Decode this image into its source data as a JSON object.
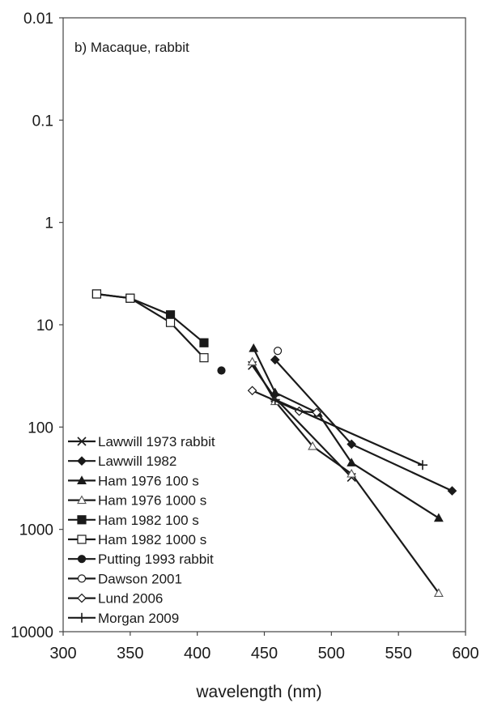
{
  "chart_data": {
    "type": "line",
    "annotation": "b)  Macaque, rabbit",
    "xlabel": "wavelength (nm)",
    "ylabel": "",
    "xlim": [
      300,
      600
    ],
    "ylim": [
      0.01,
      10000
    ],
    "y_scale": "log",
    "y_inverted": true,
    "grid": false,
    "legend_position": "bottom-left",
    "x_ticks": [
      300,
      350,
      400,
      450,
      500,
      550,
      600
    ],
    "x_tick_labels": [
      "300",
      "350",
      "400",
      "450",
      "500",
      "550",
      "600"
    ],
    "y_ticks": [
      0.01,
      0.1,
      1,
      10,
      100,
      1000,
      10000
    ],
    "y_tick_labels": [
      "0.01",
      "0.1",
      "1",
      "10",
      "100",
      "1000",
      "10000"
    ],
    "series": [
      {
        "name": "Lawwill 1973 rabbit",
        "marker": "x",
        "points": [
          [
            441,
            25
          ],
          [
            458,
            52
          ],
          [
            515,
            310
          ]
        ]
      },
      {
        "name": "Lawwill 1982",
        "marker": "diamond",
        "points": [
          [
            458,
            22
          ],
          [
            515,
            147
          ],
          [
            590,
            420
          ]
        ]
      },
      {
        "name": "Ham 1976 100 s",
        "marker": "triangle",
        "points": [
          [
            442,
            17
          ],
          [
            458,
            46
          ],
          [
            490,
            73
          ],
          [
            515,
            223
          ],
          [
            580,
            775
          ]
        ]
      },
      {
        "name": "Ham 1976 1000 s",
        "marker": "triangle-open",
        "points": [
          [
            441,
            23
          ],
          [
            458,
            56
          ],
          [
            486,
            154
          ],
          [
            515,
            286
          ],
          [
            580,
            4200
          ]
        ]
      },
      {
        "name": "Ham 1982 100 s",
        "marker": "square",
        "points": [
          [
            325,
            5.0
          ],
          [
            350,
            5.5
          ],
          [
            380,
            8.0
          ],
          [
            405,
            15
          ]
        ]
      },
      {
        "name": "Ham 1982 1000 s",
        "marker": "square-open",
        "points": [
          [
            325,
            5.0
          ],
          [
            350,
            5.5
          ],
          [
            380,
            9.5
          ],
          [
            405,
            21
          ]
        ]
      },
      {
        "name": "Putting 1993 rabbit",
        "marker": "circle",
        "points": [
          [
            418,
            28
          ]
        ]
      },
      {
        "name": "Dawson 2001",
        "marker": "circle-open",
        "points": [
          [
            460,
            18
          ]
        ]
      },
      {
        "name": "Lund 2006",
        "marker": "diamond-open",
        "points": [
          [
            441,
            44
          ],
          [
            476,
            70
          ],
          [
            489,
            72
          ]
        ]
      },
      {
        "name": "Morgan 2009",
        "marker": "plus",
        "points": [
          [
            458,
            54
          ],
          [
            568,
            235
          ]
        ]
      }
    ]
  }
}
